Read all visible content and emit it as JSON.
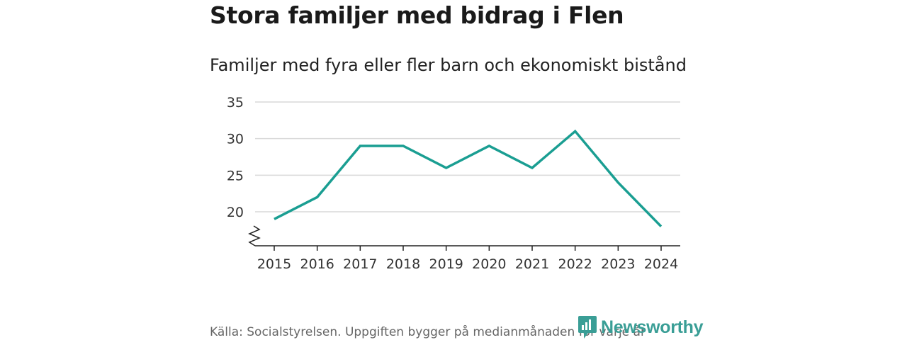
{
  "chart_data": {
    "type": "line",
    "title": "Stora familjer med bidrag i Flen",
    "subtitle": "Familjer med fyra eller fler barn och ekonomiskt bistånd",
    "categories": [
      "2015",
      "2016",
      "2017",
      "2018",
      "2019",
      "2020",
      "2021",
      "2022",
      "2023",
      "2024"
    ],
    "series": [
      {
        "name": "Familjer med fyra eller fler barn och ekonomiskt bistånd",
        "values": [
          19,
          22,
          29,
          29,
          26,
          29,
          26,
          31,
          24,
          18
        ]
      }
    ],
    "yticks": [
      "20",
      "25",
      "30",
      "35"
    ],
    "ylim": [
      15,
      35
    ],
    "grid": true,
    "axis_break": true,
    "line_color": "#1a9e92",
    "grid_color": "#d9d9d9"
  },
  "footer": {
    "source": "Källa: Socialstyrelsen. Uppgiften bygger på medianmånaden för varje år"
  },
  "brand": {
    "name": "Newsworthy",
    "icon": "newsworthy-logo-icon",
    "color": "#3a9e96"
  }
}
